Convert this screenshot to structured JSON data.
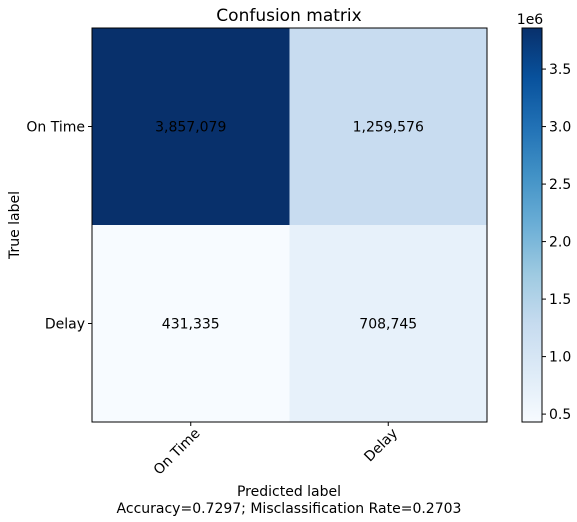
{
  "chart_data": {
    "type": "heatmap",
    "title": "Confusion matrix",
    "xlabel": "Predicted label",
    "xlabel_sub": "Accuracy=0.7297; Misclassification Rate=0.2703",
    "ylabel": "True label",
    "x_categories": [
      "On Time",
      "Delay"
    ],
    "y_categories": [
      "On Time",
      "Delay"
    ],
    "values": [
      [
        3857079,
        1259576
      ],
      [
        431335,
        708745
      ]
    ],
    "cell_labels": [
      [
        "3,857,079",
        "1,259,576"
      ],
      [
        "431,335",
        "708,745"
      ]
    ],
    "colormap": "Blues",
    "colorbar": {
      "min": 431335,
      "max": 3857079,
      "offset_label": "1e6",
      "ticks": [
        {
          "value": 0.5,
          "label": "0.5"
        },
        {
          "value": 1.0,
          "label": "1.0"
        },
        {
          "value": 1.5,
          "label": "1.5"
        },
        {
          "value": 2.0,
          "label": "2.0"
        },
        {
          "value": 2.5,
          "label": "2.5"
        },
        {
          "value": 3.0,
          "label": "3.0"
        },
        {
          "value": 3.5,
          "label": "3.5"
        }
      ]
    }
  }
}
